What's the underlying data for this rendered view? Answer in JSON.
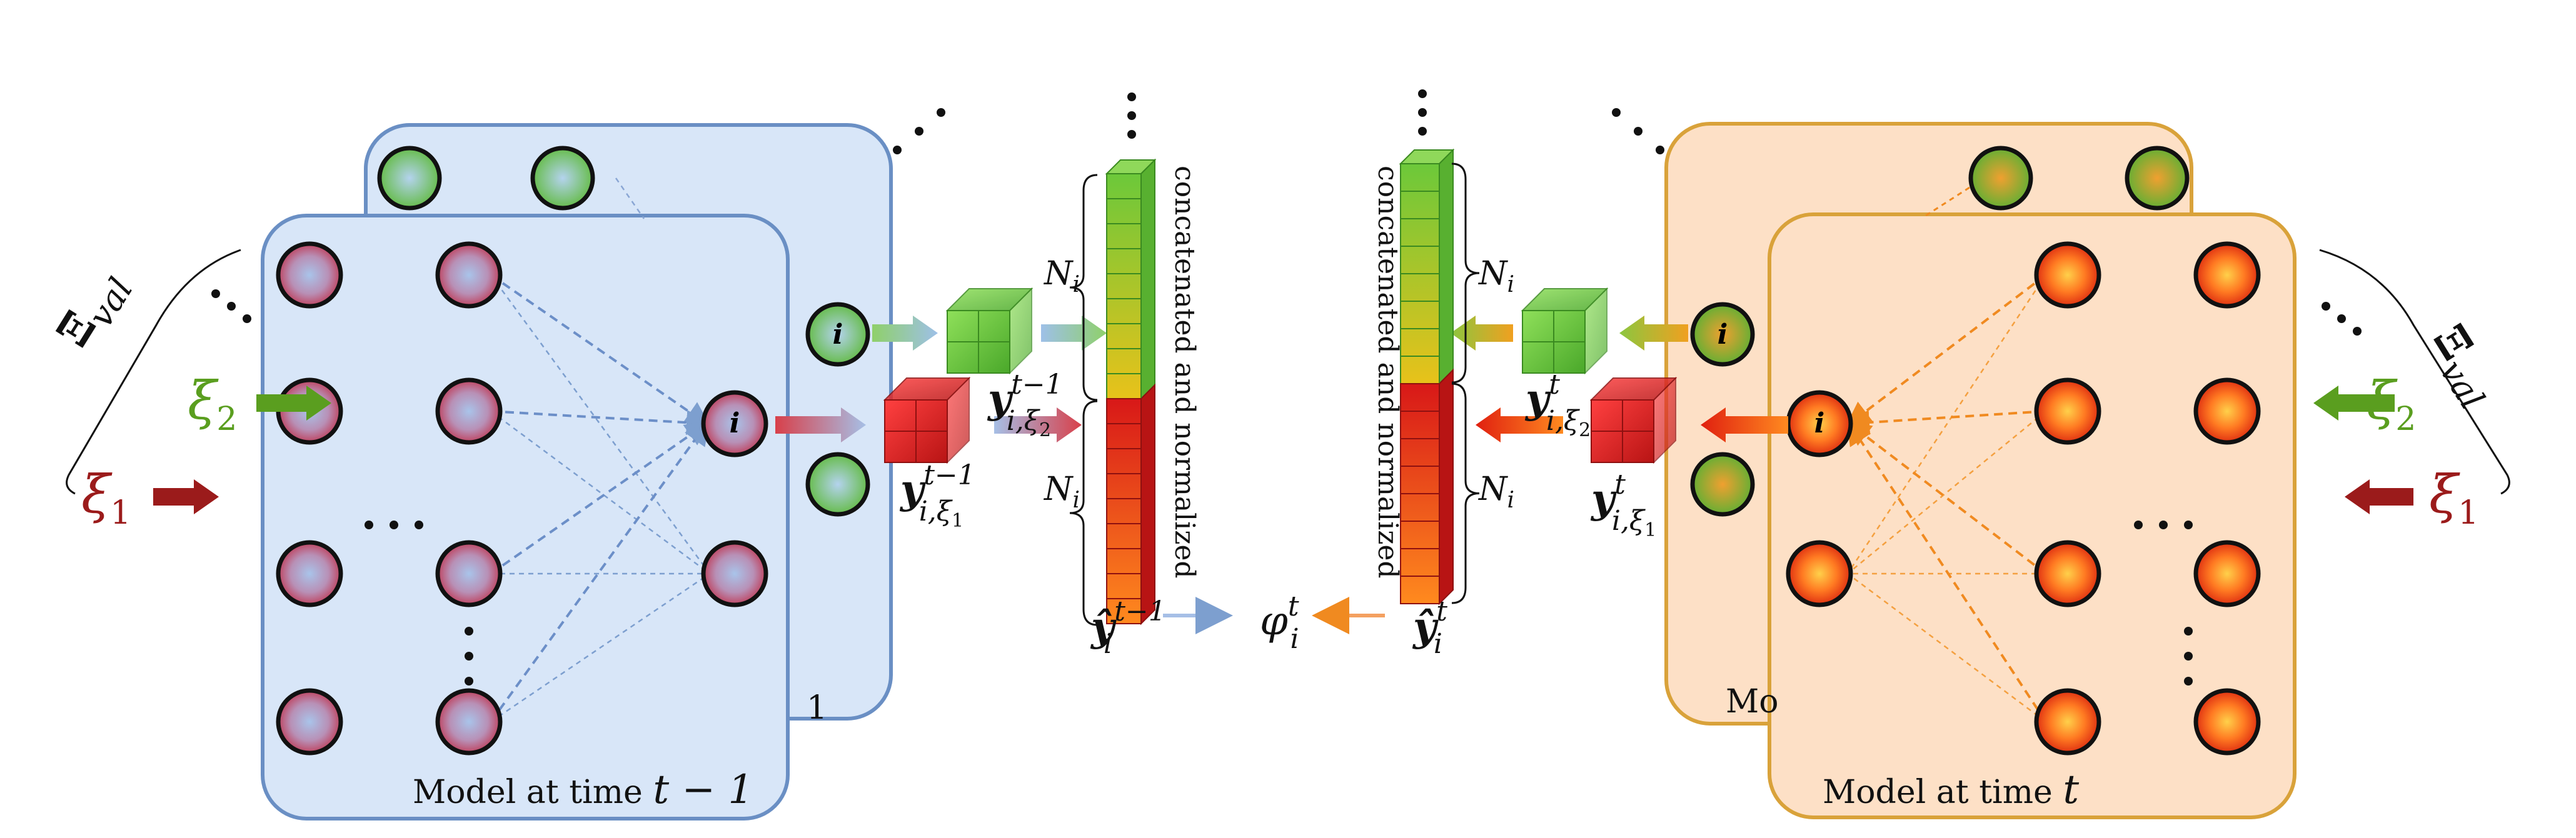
{
  "left_panel": {
    "model_caption": "Model at time ",
    "time_symbol": "t − 1",
    "back_frame_tag": "1",
    "neuron_label": "i",
    "dots": "⋮",
    "hdots": "· · ·"
  },
  "right_panel": {
    "model_caption": "Model at time ",
    "time_symbol": "t",
    "back_frame_caption": "Mo",
    "neuron_label": "i"
  },
  "inputs": {
    "xi1": "ξ",
    "xi1_sub": "1",
    "xi2": "ξ",
    "xi2_sub": "2",
    "set_symbol": "Ξ",
    "set_subscript": "val"
  },
  "outputs_left": {
    "y_green_main": "y",
    "y_green_sup": "t−1",
    "y_green_sub": "i,ξ",
    "y_green_subsub": "2",
    "y_red_main": "y",
    "y_red_sup": "t−1",
    "y_red_sub": "i,ξ",
    "y_red_subsub": "1"
  },
  "outputs_right": {
    "y_green_main": "y",
    "y_green_sup": "t",
    "y_green_sub": "i,ξ",
    "y_green_subsub": "2",
    "y_red_main": "y",
    "y_red_sup": "t",
    "y_red_sub": "i,ξ",
    "y_red_subsub": "1"
  },
  "stack_left": {
    "caption": "concatenated and normalized",
    "brace_label": "N",
    "brace_sub": "i",
    "yhat_main": "ŷ",
    "yhat_sup": "t−1",
    "yhat_sub": "i"
  },
  "stack_right": {
    "caption": "concatenated and normalized",
    "brace_label": "N",
    "brace_sub": "i",
    "yhat_main": "ŷ",
    "yhat_sup": "t",
    "yhat_sub": "i"
  },
  "center": {
    "phi": "φ",
    "phi_sup": "t",
    "phi_sub": "i"
  },
  "colors": {
    "left_panel_fill": "#d8e6f8",
    "left_panel_stroke": "#6a8fc4",
    "right_panel_fill": "#fde0c6",
    "right_panel_stroke": "#d9a23a",
    "red_node": "#c8374b",
    "green_node": "#6cc04a",
    "orange_node": "#f0501c",
    "xi1_color": "#9b1b1b",
    "xi2_color": "#5a9e1f"
  }
}
